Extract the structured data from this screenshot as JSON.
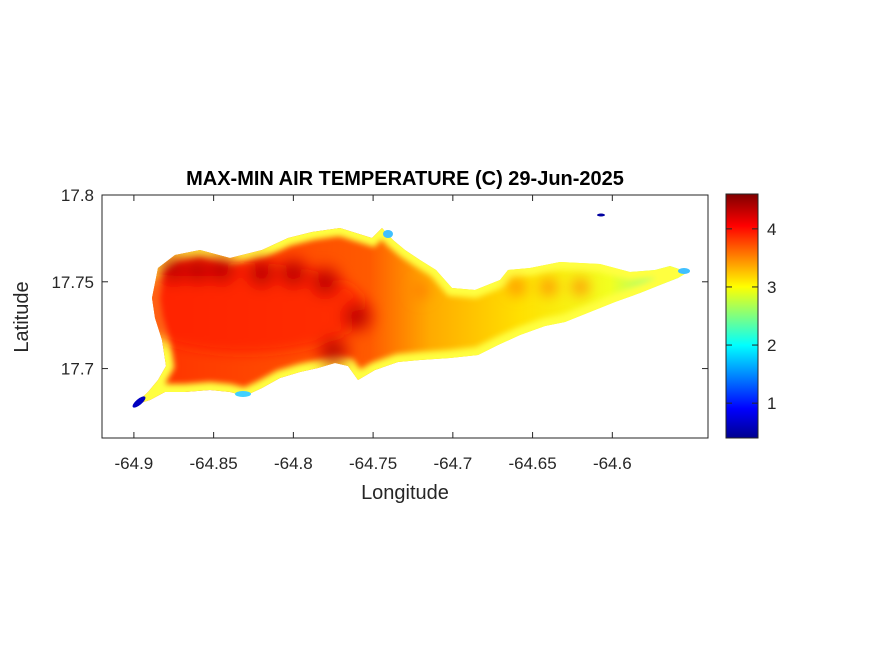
{
  "chart_data": {
    "type": "heatmap",
    "title": "MAX-MIN AIR TEMPERATURE (C) 29-Jun-2025",
    "xlabel": "Longitude",
    "ylabel": "Latitude",
    "xlim": [
      -64.92,
      -64.54
    ],
    "ylim": [
      17.66,
      17.8
    ],
    "xticks": [
      -64.9,
      -64.85,
      -64.8,
      -64.75,
      -64.7,
      -64.65,
      -64.6
    ],
    "xtick_labels": [
      "-64.9",
      "-64.85",
      "-64.8",
      "-64.75",
      "-64.7",
      "-64.65",
      "-64.6"
    ],
    "yticks": [
      17.7,
      17.75,
      17.8
    ],
    "ytick_labels": [
      "17.7",
      "17.75",
      "17.8"
    ],
    "colorbar": {
      "range": [
        0.4,
        4.6
      ],
      "ticks": [
        1,
        2,
        3,
        4
      ],
      "tick_labels": [
        "1",
        "2",
        "3",
        "4"
      ],
      "colormap": [
        "#00008f",
        "#0000ff",
        "#00ffff",
        "#ffff00",
        "#ff0000",
        "#800000"
      ]
    },
    "grid": false,
    "region": "St. Croix island outline, lon -64.90 to -64.56, lat 17.68 to 17.79",
    "hotspots": [
      {
        "lon": -64.875,
        "lat": 17.757,
        "value": 4.5
      },
      {
        "lon": -64.86,
        "lat": 17.757,
        "value": 4.5
      },
      {
        "lon": -64.845,
        "lat": 17.757,
        "value": 4.4
      },
      {
        "lon": -64.82,
        "lat": 17.755,
        "value": 4.4
      },
      {
        "lon": -64.8,
        "lat": 17.755,
        "value": 4.3
      },
      {
        "lon": -64.78,
        "lat": 17.75,
        "value": 4.2
      },
      {
        "lon": -64.76,
        "lat": 17.73,
        "value": 4.5
      },
      {
        "lon": -64.775,
        "lat": 17.71,
        "value": 4.3
      },
      {
        "lon": -64.72,
        "lat": 17.745,
        "value": 3.8
      },
      {
        "lon": -64.66,
        "lat": 17.747,
        "value": 3.6
      },
      {
        "lon": -64.64,
        "lat": 17.747,
        "value": 3.6
      },
      {
        "lon": -64.62,
        "lat": 17.747,
        "value": 3.6
      }
    ],
    "edge_minimum": {
      "lon": -64.9,
      "lat": 17.68,
      "value": 0.5
    }
  }
}
